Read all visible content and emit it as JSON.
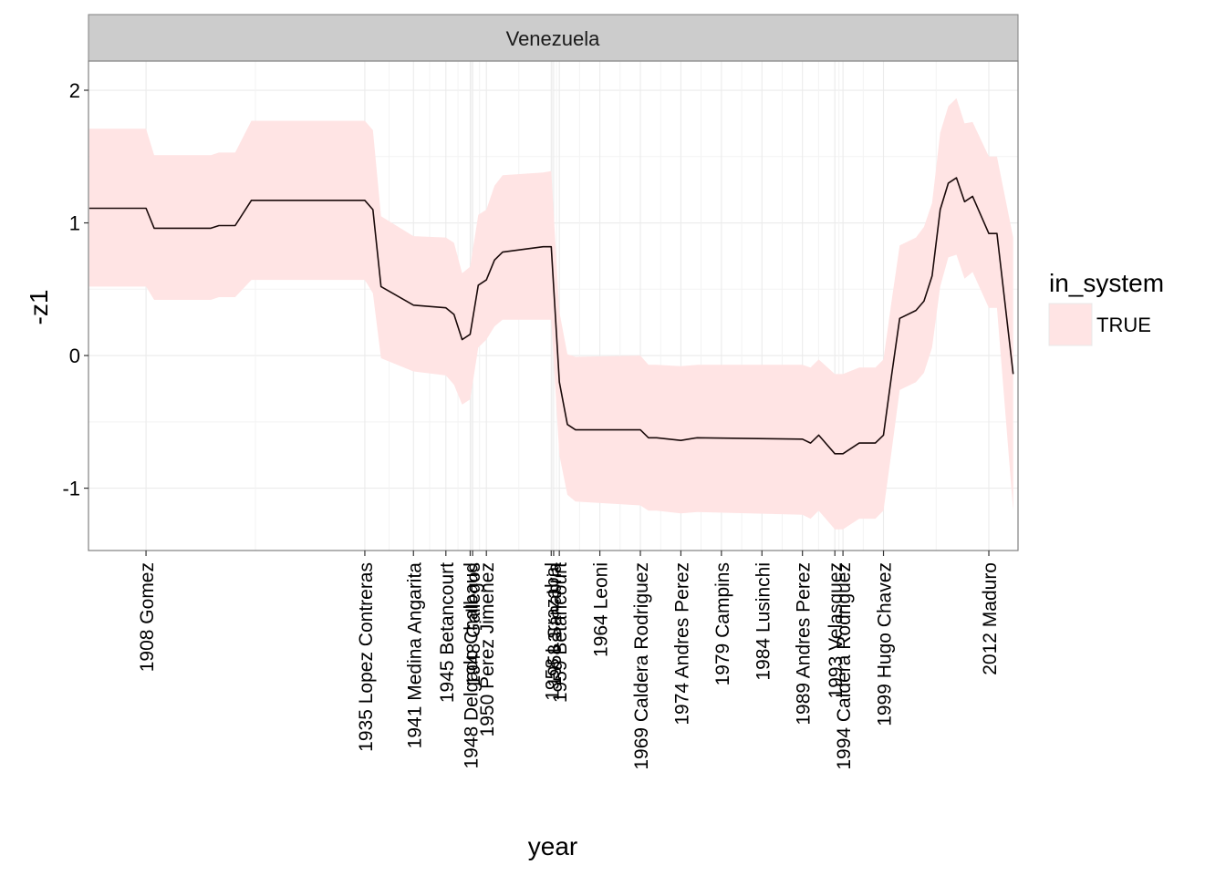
{
  "chart_data": {
    "type": "line",
    "facet_label": "Venezuela",
    "xlabel": "year",
    "ylabel": "-z1",
    "xlim": [
      1900.9,
      2015.6
    ],
    "ylim": [
      -1.47,
      2.22
    ],
    "yticks": [
      -1,
      0,
      1,
      2
    ],
    "grid": true,
    "legend": {
      "title": "in_system",
      "entries": [
        {
          "label": "TRUE",
          "color": "#FFE4E4"
        }
      ],
      "placement": "right"
    },
    "colors": {
      "ribbon": "#FFE4E4",
      "line": "#1a0a0a",
      "strip": "#CCCCCC",
      "panel_border": "#808080",
      "grid": "#EBEBEB"
    },
    "xticks": [
      {
        "x": 1908,
        "label": "1908 Gomez"
      },
      {
        "x": 1935,
        "label": "1935 Lopez Contreras"
      },
      {
        "x": 1941,
        "label": "1941 Medina Angarita"
      },
      {
        "x": 1945,
        "label": "1945 Betancourt"
      },
      {
        "x": 1948,
        "label": "1948 Delgado Chalbaud"
      },
      {
        "x": 1948.3,
        "label": "1948 Gallegos"
      },
      {
        "x": 1950,
        "label": "1950 Perez Jimenez"
      },
      {
        "x": 1958,
        "label": "1958 Larrazabal"
      },
      {
        "x": 1958.3,
        "label": "1958 Sanabria"
      },
      {
        "x": 1959,
        "label": "1959 Betancourt"
      },
      {
        "x": 1964,
        "label": "1964 Leoni"
      },
      {
        "x": 1969,
        "label": "1969 Caldera Rodriguez"
      },
      {
        "x": 1974,
        "label": "1974 Andres Perez"
      },
      {
        "x": 1979,
        "label": "1979 Campins"
      },
      {
        "x": 1984,
        "label": "1984 Lusinchi"
      },
      {
        "x": 1989,
        "label": "1989 Andres Perez"
      },
      {
        "x": 1993,
        "label": "1993 Velasquez"
      },
      {
        "x": 1994,
        "label": "1994 Caldera Rodriguez"
      },
      {
        "x": 1999,
        "label": "1999 Hugo Chavez"
      },
      {
        "x": 2012,
        "label": "2012 Maduro"
      }
    ],
    "series": [
      {
        "name": "TRUE",
        "x": [
          1901,
          1908,
          1909,
          1916,
          1917,
          1919,
          1921,
          1935,
          1936,
          1937,
          1941,
          1945,
          1946,
          1947,
          1948,
          1949,
          1950,
          1951,
          1952,
          1957,
          1958,
          1959,
          1960,
          1961,
          1969,
          1970,
          1971,
          1974,
          1976,
          1989,
          1990,
          1991,
          1993,
          1994,
          1996,
          1998,
          1999,
          2000,
          2001,
          2003,
          2004,
          2005,
          2006,
          2007,
          2008,
          2009,
          2010,
          2012,
          2013,
          2015
        ],
        "y": [
          1.11,
          1.11,
          0.96,
          0.96,
          0.98,
          0.98,
          1.17,
          1.17,
          1.1,
          0.52,
          0.38,
          0.36,
          0.31,
          0.12,
          0.16,
          0.53,
          0.57,
          0.72,
          0.78,
          0.82,
          0.82,
          -0.2,
          -0.52,
          -0.56,
          -0.56,
          -0.62,
          -0.62,
          -0.64,
          -0.62,
          -0.63,
          -0.66,
          -0.6,
          -0.74,
          -0.74,
          -0.66,
          -0.66,
          -0.6,
          -0.15,
          0.28,
          0.34,
          0.41,
          0.6,
          1.1,
          1.3,
          1.34,
          1.16,
          1.2,
          0.92,
          0.92,
          -0.14
        ],
        "lower": [
          0.52,
          0.52,
          0.42,
          0.42,
          0.44,
          0.44,
          0.57,
          0.57,
          0.47,
          -0.02,
          -0.12,
          -0.15,
          -0.22,
          -0.37,
          -0.33,
          0.06,
          0.12,
          0.22,
          0.27,
          0.27,
          0.27,
          -0.75,
          -1.05,
          -1.1,
          -1.13,
          -1.17,
          -1.17,
          -1.19,
          -1.18,
          -1.2,
          -1.23,
          -1.17,
          -1.31,
          -1.31,
          -1.23,
          -1.23,
          -1.17,
          -0.72,
          -0.26,
          -0.2,
          -0.13,
          0.06,
          0.52,
          0.74,
          0.76,
          0.58,
          0.63,
          0.36,
          0.36,
          -1.17
        ],
        "upper": [
          1.71,
          1.71,
          1.51,
          1.51,
          1.53,
          1.53,
          1.77,
          1.77,
          1.7,
          1.05,
          0.9,
          0.89,
          0.85,
          0.62,
          0.67,
          1.06,
          1.1,
          1.28,
          1.36,
          1.38,
          1.39,
          0.33,
          0.01,
          -0.01,
          0.0,
          -0.07,
          -0.07,
          -0.08,
          -0.07,
          -0.07,
          -0.09,
          -0.03,
          -0.14,
          -0.14,
          -0.09,
          -0.09,
          -0.03,
          0.41,
          0.83,
          0.89,
          0.97,
          1.15,
          1.68,
          1.88,
          1.94,
          1.75,
          1.76,
          1.5,
          1.5,
          0.89
        ]
      }
    ]
  }
}
